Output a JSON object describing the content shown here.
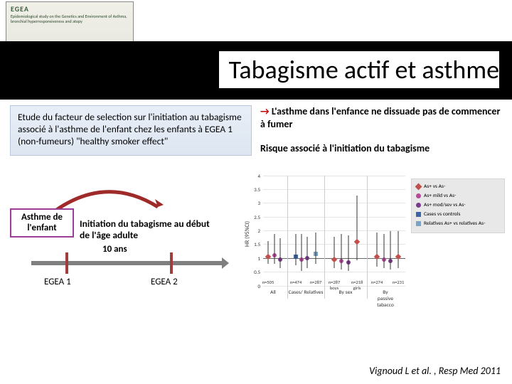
{
  "logo": {
    "title": "EGEA",
    "sub": "Epidemiological study on the Genetics and Environment of Asthma, bronchial hyperresponsiveness and atopy"
  },
  "title": "Tabagisme actif et asthme",
  "left_box": "Etude du facteur de selection sur l'initiation au tabagisme associé à l'asthme de l'enfant chez les enfants à EGEA 1 (non-fumeurs) \"healthy smoker effect\"",
  "right": {
    "arrow": "→",
    "line1": "L'asthme dans l'enfance ne dissuade pas de commencer à fumer",
    "line2": "Risque associé à l'initiation du tabagisme"
  },
  "diagram": {
    "asthma_label": "Asthme de l'enfant",
    "init_label": "Initiation du tabagisme au début de l'âge adulte",
    "ten_years": "10 ans",
    "egea1": "EGEA 1",
    "egea2": "EGEA 2",
    "tick1_x": 48,
    "tick2_x": 195,
    "curve_color": "#9e2a2a"
  },
  "chart": {
    "title": "Risque associé à l'initiation du tabagisme",
    "ylabel": "HR (95%CI)",
    "ylim": [
      0,
      4
    ],
    "ytick_step": 0.5,
    "hr1": 1,
    "grid_color": "#e5e5e5",
    "colors": {
      "m0": "#c0504d",
      "m1": "#b84a9a",
      "m2": "#7c3a8e",
      "m3": "#3a66a8",
      "m4": "#7aa3c9"
    },
    "legend": [
      {
        "mk": "diamond",
        "color": "#c0504d",
        "label": "As+ vs As-"
      },
      {
        "mk": "circle",
        "color": "#b84a9a",
        "label": "As+ mild vs As-"
      },
      {
        "mk": "circle",
        "color": "#7c3a8e",
        "label": "As+ mod/sev vs As-"
      },
      {
        "mk": "square",
        "color": "#3a66a8",
        "label": "Cases vs controls"
      },
      {
        "mk": "square",
        "color": "#7aa3c9",
        "label": "Relatives As+ vs relatives As-"
      }
    ],
    "groups": [
      {
        "label": "All",
        "x": 0.07
      },
      {
        "label": "Cases/ Relatives",
        "x": 0.3
      },
      {
        "label": "By sex",
        "x": 0.58
      },
      {
        "label": "By passive tabacco",
        "x": 0.86
      }
    ],
    "vlines": [
      0.17,
      0.43,
      0.73
    ],
    "points": [
      {
        "x": 0.035,
        "y": 1.05,
        "lo": 0.7,
        "hi": 1.55,
        "mk": "diamond",
        "c": "m0",
        "n": "n=505"
      },
      {
        "x": 0.08,
        "y": 1.1,
        "lo": 0.7,
        "hi": 1.8,
        "mk": "circle",
        "c": "m1"
      },
      {
        "x": 0.12,
        "y": 0.95,
        "lo": 0.55,
        "hi": 1.65,
        "mk": "circle",
        "c": "m2"
      },
      {
        "x": 0.23,
        "y": 1.05,
        "lo": 0.65,
        "hi": 1.8,
        "mk": "square",
        "c": "m3",
        "n": "n=474"
      },
      {
        "x": 0.27,
        "y": 0.95,
        "lo": 0.45,
        "hi": 1.8,
        "mk": "circle",
        "c": "m1"
      },
      {
        "x": 0.31,
        "y": 1.0,
        "lo": 0.55,
        "hi": 1.7,
        "mk": "circle",
        "c": "m2"
      },
      {
        "x": 0.37,
        "y": 1.15,
        "lo": 0.7,
        "hi": 1.85,
        "mk": "square",
        "c": "m4",
        "n": "n=287"
      },
      {
        "x": 0.5,
        "y": 0.95,
        "lo": 0.55,
        "hi": 1.7,
        "mk": "diamond",
        "c": "m0",
        "n": "n=287"
      },
      {
        "x": 0.55,
        "y": 0.9,
        "lo": 0.5,
        "hi": 1.8,
        "mk": "circle",
        "c": "m1"
      },
      {
        "x": 0.6,
        "y": 0.85,
        "lo": 0.45,
        "hi": 1.75,
        "mk": "circle",
        "c": "m2"
      },
      {
        "x": 0.66,
        "y": 1.6,
        "lo": 0.85,
        "hi": 3.2,
        "mk": "diamond",
        "c": "m0",
        "n": "n=218"
      },
      {
        "x": 0.8,
        "y": 1.05,
        "lo": 0.6,
        "hi": 1.85,
        "mk": "diamond",
        "c": "m0",
        "n": "n=274"
      },
      {
        "x": 0.85,
        "y": 0.95,
        "lo": 0.55,
        "hi": 1.8,
        "mk": "circle",
        "c": "m1"
      },
      {
        "x": 0.895,
        "y": 0.9,
        "lo": 0.5,
        "hi": 1.9,
        "mk": "circle",
        "c": "m2"
      },
      {
        "x": 0.95,
        "y": 1.05,
        "lo": 0.55,
        "hi": 1.9,
        "mk": "diamond",
        "c": "m0",
        "n": "n=231"
      }
    ],
    "x_sublabels": [
      {
        "x": 0.5,
        "label": "boys"
      },
      {
        "x": 0.66,
        "label": "girls"
      }
    ]
  },
  "citation": "Vignoud L et al. , Resp Med 2011"
}
